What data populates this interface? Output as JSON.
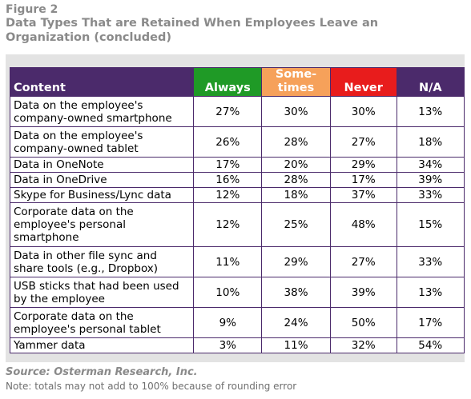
{
  "figure_label": "Figure 2",
  "title": "Data Types That are Retained When Employees Leave an Organization (concluded)",
  "headers": {
    "content": "Content",
    "always": "Always",
    "sometimes": "Some-\ntimes",
    "never": "Never",
    "na": "N/A"
  },
  "colors": {
    "content_header": "#4b2a6b",
    "always_header": "#1f9a26",
    "sometimes_header": "#f6a15a",
    "never_header": "#e81c1c",
    "na_header": "#4b2a6b",
    "border": "#4b2a6b"
  },
  "rows": [
    {
      "label": "Data on the employee's company-owned smartphone",
      "always": "27%",
      "sometimes": "30%",
      "never": "30%",
      "na": "13%"
    },
    {
      "label": "Data on the employee's company-owned tablet",
      "always": "26%",
      "sometimes": "28%",
      "never": "27%",
      "na": "18%"
    },
    {
      "label": "Data in OneNote",
      "always": "17%",
      "sometimes": "20%",
      "never": "29%",
      "na": "34%"
    },
    {
      "label": "Data in OneDrive",
      "always": "16%",
      "sometimes": "28%",
      "never": "17%",
      "na": "39%"
    },
    {
      "label": "Skype for Business/Lync data",
      "always": "12%",
      "sometimes": "18%",
      "never": "37%",
      "na": "33%"
    },
    {
      "label": "Corporate data on the employee's personal smartphone",
      "always": "12%",
      "sometimes": "25%",
      "never": "48%",
      "na": "15%"
    },
    {
      "label": "Data in other file sync and share tools (e.g., Dropbox)",
      "always": "11%",
      "sometimes": "29%",
      "never": "27%",
      "na": "33%"
    },
    {
      "label": "USB sticks that had been used by the employee",
      "always": "10%",
      "sometimes": "38%",
      "never": "39%",
      "na": "13%"
    },
    {
      "label": "Corporate data on the employee's personal tablet",
      "always": "9%",
      "sometimes": "24%",
      "never": "50%",
      "na": "17%"
    },
    {
      "label": "Yammer data",
      "always": "3%",
      "sometimes": "11%",
      "never": "32%",
      "na": "54%"
    }
  ],
  "source": "Source: Osterman Research, Inc.",
  "note": "Note: totals may not add to 100% because of rounding error"
}
